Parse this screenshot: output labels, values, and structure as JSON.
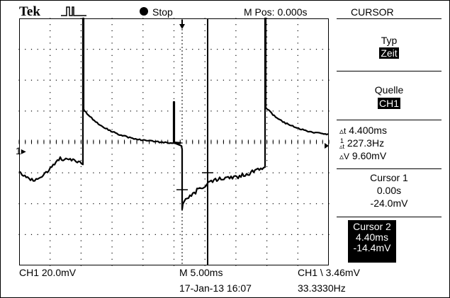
{
  "header": {
    "brand": "Tek",
    "run_state": "Stop",
    "mpos": "M Pos: 0.000s",
    "menu_title": "CURSOR"
  },
  "menu": {
    "typ_label": "Typ",
    "typ_value": "Zeit",
    "quelle_label": "Quelle",
    "quelle_value": "CH1",
    "dt": "4.400ms",
    "inv_dt": "227.3Hz",
    "dv": "9.60mV",
    "cursor1_label": "Cursor 1",
    "cursor1_time": "0.00s",
    "cursor1_volt": "-24.0mV",
    "cursor2_label": "Cursor 2",
    "cursor2_time": "4.40ms",
    "cursor2_volt": "-14.4mV"
  },
  "footer": {
    "ch1_scale": "CH1  20.0mV",
    "timebase": "M 5.00ms",
    "trigger": "CH1 \\ 3.46mV",
    "date": "17-Jan-13 16:07",
    "freq": "33.3330Hz"
  },
  "markers": {
    "ch1_ground": "1"
  },
  "icons": {
    "trigger_position": "trigger-position-arrow",
    "trigger_level": "trigger-level-arrow",
    "ground": "ch1-ground-marker",
    "pulse": "pulse-acquire-icon",
    "run": "stop-dot-icon"
  }
}
